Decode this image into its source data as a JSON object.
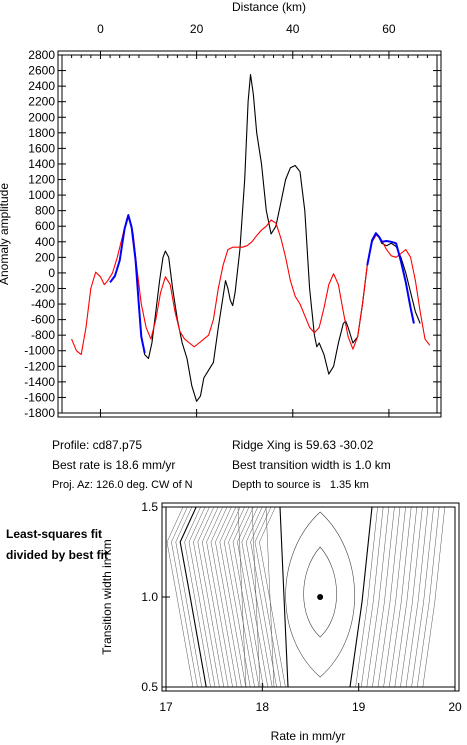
{
  "chart_data": [
    {
      "type": "line",
      "title": "",
      "xlabel": "Distance (km)",
      "ylabel": "Anomaly amplitude",
      "xlim": [
        -8,
        70
      ],
      "ylim": [
        -1800,
        2800
      ],
      "x_ticks": [
        0,
        20,
        40,
        60
      ],
      "y_ticks": [
        2800,
        2600,
        2400,
        2200,
        2000,
        1800,
        1600,
        1400,
        1200,
        1000,
        800,
        600,
        400,
        200,
        0,
        -200,
        -400,
        -600,
        -800,
        -1000,
        -1200,
        -1400,
        -1600,
        -1800
      ],
      "series": [
        {
          "color": "#000000",
          "points": [
            [
              2,
              -120
            ],
            [
              3,
              -50
            ],
            [
              4,
              150
            ],
            [
              5,
              550
            ],
            [
              5.8,
              750
            ],
            [
              6.5,
              600
            ],
            [
              7.3,
              200
            ],
            [
              8,
              -400
            ],
            [
              8.5,
              -800
            ],
            [
              9.2,
              -1050
            ],
            [
              10,
              -1100
            ],
            [
              10.7,
              -900
            ],
            [
              11.5,
              -500
            ],
            [
              12.3,
              -100
            ],
            [
              13,
              200
            ],
            [
              13.5,
              280
            ],
            [
              14.2,
              200
            ],
            [
              15,
              -200
            ],
            [
              16,
              -600
            ],
            [
              17,
              -900
            ],
            [
              18,
              -1100
            ],
            [
              19,
              -1450
            ],
            [
              20,
              -1650
            ],
            [
              20.8,
              -1580
            ],
            [
              21.5,
              -1350
            ],
            [
              22.5,
              -1250
            ],
            [
              23.5,
              -1150
            ],
            [
              24.5,
              -700
            ],
            [
              25.5,
              -300
            ],
            [
              26,
              -100
            ],
            [
              26.5,
              -200
            ],
            [
              27,
              -350
            ],
            [
              27.5,
              -420
            ],
            [
              28,
              -250
            ],
            [
              29,
              300
            ],
            [
              30,
              1200
            ],
            [
              30.7,
              2200
            ],
            [
              31.2,
              2550
            ],
            [
              31.8,
              2300
            ],
            [
              32.5,
              1800
            ],
            [
              33.5,
              1400
            ],
            [
              34.5,
              800
            ],
            [
              35.5,
              500
            ],
            [
              36.5,
              600
            ],
            [
              37.5,
              900
            ],
            [
              38.5,
              1200
            ],
            [
              39.5,
              1350
            ],
            [
              40.5,
              1380
            ],
            [
              41.5,
              1300
            ],
            [
              42.5,
              800
            ],
            [
              43.5,
              -200
            ],
            [
              44.5,
              -800
            ],
            [
              45,
              -950
            ],
            [
              45.5,
              -900
            ],
            [
              46.5,
              -1050
            ],
            [
              47.5,
              -1300
            ],
            [
              48.5,
              -1200
            ],
            [
              49.5,
              -900
            ],
            [
              50.5,
              -650
            ],
            [
              51,
              -620
            ],
            [
              51.5,
              -700
            ],
            [
              52.5,
              -900
            ],
            [
              53.5,
              -820
            ],
            [
              54.5,
              -400
            ],
            [
              55.5,
              100
            ],
            [
              56.5,
              400
            ],
            [
              57.3,
              500
            ],
            [
              58,
              450
            ],
            [
              58.5,
              380
            ],
            [
              59.5,
              350
            ],
            [
              60.5,
              380
            ],
            [
              61.5,
              340
            ],
            [
              62.5,
              200
            ],
            [
              63.5,
              0
            ],
            [
              64.5,
              -250
            ],
            [
              65.5,
              -500
            ],
            [
              66.5,
              -650
            ]
          ]
        },
        {
          "color": "#ff0000",
          "points": [
            [
              -6,
              -850
            ],
            [
              -5,
              -1000
            ],
            [
              -4,
              -1050
            ],
            [
              -3,
              -700
            ],
            [
              -2,
              -200
            ],
            [
              -1,
              10
            ],
            [
              0,
              -50
            ],
            [
              0.8,
              -150
            ],
            [
              1.5,
              -100
            ],
            [
              2.5,
              0
            ],
            [
              3.5,
              200
            ],
            [
              4.5,
              450
            ],
            [
              5.5,
              700
            ],
            [
              6,
              720
            ],
            [
              6.8,
              500
            ],
            [
              7.5,
              100
            ],
            [
              8.5,
              -400
            ],
            [
              9.5,
              -700
            ],
            [
              10.5,
              -850
            ],
            [
              11.5,
              -600
            ],
            [
              12.5,
              -250
            ],
            [
              13.5,
              -50
            ],
            [
              14.5,
              -150
            ],
            [
              15.5,
              -500
            ],
            [
              16.5,
              -750
            ],
            [
              17.5,
              -850
            ],
            [
              18.5,
              -900
            ],
            [
              19.5,
              -950
            ],
            [
              20.5,
              -900
            ],
            [
              21.5,
              -850
            ],
            [
              22.5,
              -800
            ],
            [
              23.5,
              -600
            ],
            [
              24.5,
              -200
            ],
            [
              25.5,
              100
            ],
            [
              26.5,
              300
            ],
            [
              27.5,
              330
            ],
            [
              28.5,
              330
            ],
            [
              29.5,
              330
            ],
            [
              30.5,
              350
            ],
            [
              31.5,
              400
            ],
            [
              32.5,
              480
            ],
            [
              33.5,
              550
            ],
            [
              34.5,
              600
            ],
            [
              35.5,
              680
            ],
            [
              36.5,
              640
            ],
            [
              37.5,
              450
            ],
            [
              38.5,
              200
            ],
            [
              39.5,
              -100
            ],
            [
              40.5,
              -300
            ],
            [
              41.5,
              -400
            ],
            [
              42.5,
              -550
            ],
            [
              43.5,
              -700
            ],
            [
              44.5,
              -770
            ],
            [
              45.5,
              -700
            ],
            [
              46.5,
              -450
            ],
            [
              47.5,
              -150
            ],
            [
              48.5,
              -10
            ],
            [
              49.5,
              -150
            ],
            [
              50.5,
              -500
            ],
            [
              51.5,
              -820
            ],
            [
              52.5,
              -980
            ],
            [
              53.5,
              -820
            ],
            [
              54.5,
              -400
            ],
            [
              55.5,
              100
            ],
            [
              56.5,
              400
            ],
            [
              57.5,
              500
            ],
            [
              58.5,
              420
            ],
            [
              59.5,
              300
            ],
            [
              60.5,
              220
            ],
            [
              61.5,
              200
            ],
            [
              62.5,
              250
            ],
            [
              63.5,
              300
            ],
            [
              64.5,
              200
            ],
            [
              65.5,
              -100
            ],
            [
              66.5,
              -500
            ],
            [
              67.5,
              -850
            ],
            [
              68.5,
              -930
            ]
          ]
        },
        {
          "color": "#0000ff",
          "points": [
            [
              2,
              -120
            ],
            [
              3,
              -40
            ],
            [
              4,
              160
            ],
            [
              5,
              560
            ],
            [
              5.8,
              740
            ],
            [
              6.5,
              580
            ],
            [
              7.3,
              160
            ],
            [
              8,
              -420
            ],
            [
              8.5,
              -820
            ],
            [
              9.2,
              -1030
            ]
          ]
        },
        {
          "color": "#0000ff",
          "points": [
            [
              55.5,
              100
            ],
            [
              56.5,
              420
            ],
            [
              57.3,
              510
            ],
            [
              58,
              460
            ],
            [
              58.5,
              400
            ],
            [
              59.5,
              410
            ],
            [
              60.5,
              400
            ],
            [
              61.5,
              380
            ],
            [
              62.5,
              150
            ],
            [
              63.5,
              -120
            ],
            [
              64.5,
              -450
            ],
            [
              65.2,
              -650
            ]
          ]
        }
      ]
    },
    {
      "type": "contour",
      "title": "",
      "xlabel": "Rate in mm/yr",
      "ylabel": "Transition width in km",
      "xlim": [
        17,
        20
      ],
      "ylim": [
        0.5,
        1.5
      ],
      "x_ticks": [
        17,
        18,
        19,
        20
      ],
      "y_ticks": [
        0.5,
        1.0,
        1.5
      ],
      "best_fit_point": {
        "x": 18.6,
        "y": 1.0
      }
    }
  ],
  "profile_info": {
    "profile": "Profile: cd87.p75",
    "ridge": "Ridge Xing is 59.63 -30.02",
    "rate": "Best rate is 18.6 mm/yr",
    "transition": "Best transition width is 1.0 km",
    "azimuth": "Proj. Az: 126.0 deg. CW of N",
    "depth": "Depth to source is   1.35 km"
  },
  "contour_note": "Least-squares fit divided by best fit"
}
